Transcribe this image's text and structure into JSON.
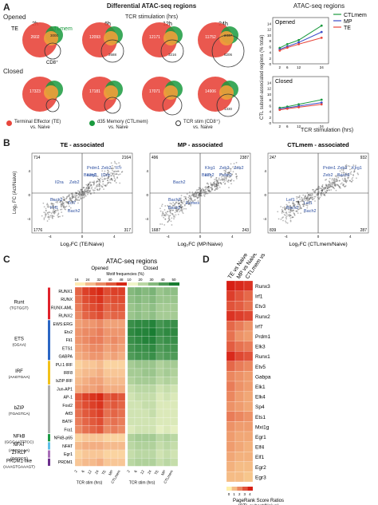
{
  "panelA": {
    "letter": "A",
    "title": "Differential ATAC-seq regions",
    "subtitle": "TCR stimulation (hrs)",
    "timepoints": [
      "2h",
      "6h",
      "12h",
      "24h"
    ],
    "opened_label": "Opened",
    "closed_label": "Closed",
    "te_label": "TE",
    "ctl_label": "CTLmem",
    "cd8_label": "CD8⁺",
    "opened_nums": [
      {
        "a": "2602",
        "b": "",
        "c": "",
        "d": "3000",
        "e": ""
      },
      {
        "a": "12093",
        "b": "",
        "c": "",
        "d": "",
        "e": "2688"
      },
      {
        "a": "12171",
        "b": "",
        "c": "",
        "d": "",
        "e": "3216"
      },
      {
        "a": "11752",
        "b": "2447",
        "c": "",
        "d": "",
        "e": "6206"
      }
    ],
    "closed_nums": [
      {
        "a": "17323",
        "b": "",
        "c": "",
        "d": "",
        "e": ""
      },
      {
        "a": "17181",
        "b": "",
        "c": "",
        "d": "",
        "e": ""
      },
      {
        "a": "17071",
        "b": "",
        "c": "",
        "d": "",
        "e": ""
      },
      {
        "a": "14906",
        "b": "",
        "c": "",
        "d": "",
        "e": "1330"
      }
    ],
    "legend": [
      {
        "color": "#e8463c",
        "line1": "Terminal Effector (TE)",
        "line2": "vs. Naive"
      },
      {
        "color": "#1a9a3e",
        "line1": "d35 Memory (CTLmem)",
        "line2": "vs. Naive"
      },
      {
        "color": "#ffffff",
        "line1": "TCR stim (CD8⁺)",
        "line2": "vs. Naive"
      }
    ],
    "line_title": "ATAC-seq regions",
    "line_ylabel": "CTL subset-associated regions (% total)",
    "line_xlabel": "TCR stimulation (hrs)",
    "colors": {
      "te": "#e8463c",
      "ctl": "#1a9a3e",
      "mp": "#3b4bc8"
    }
  },
  "chart_data": [
    {
      "type": "line",
      "title": "Opened",
      "x": [
        2,
        6,
        12,
        24
      ],
      "xticks": [
        "2",
        "6",
        "12",
        "24"
      ],
      "ylim": [
        0,
        16
      ],
      "yticks": [
        "0",
        "2",
        "4",
        "6",
        "8",
        "10",
        "12",
        "14"
      ],
      "series": [
        {
          "name": "CTLmem",
          "values": [
            5.5,
            6.8,
            8.2,
            13.2
          ]
        },
        {
          "name": "MP",
          "values": [
            5.0,
            6.0,
            7.4,
            11.0
          ]
        },
        {
          "name": "TE",
          "values": [
            4.6,
            5.6,
            6.8,
            9.0
          ]
        }
      ]
    },
    {
      "type": "line",
      "title": "Closed",
      "x": [
        2,
        6,
        12,
        24
      ],
      "xticks": [
        "2",
        "6",
        "12",
        "24"
      ],
      "ylim": [
        0,
        16
      ],
      "yticks": [
        "0",
        "2",
        "4",
        "6",
        "8",
        "10",
        "12",
        "14"
      ],
      "series": [
        {
          "name": "CTLmem",
          "values": [
            5.2,
            5.6,
            6.4,
            8.0
          ]
        },
        {
          "name": "MP",
          "values": [
            4.8,
            5.2,
            5.8,
            7.0
          ]
        },
        {
          "name": "TE",
          "values": [
            4.5,
            4.9,
            5.4,
            6.4
          ]
        }
      ]
    },
    {
      "type": "scatter",
      "title": "TE - associated",
      "xlabel": "Log2FC (TE/Naive)",
      "ylabel": "Log2 FC (Act/Naive)",
      "quadrant_counts": [
        "714",
        "2164",
        "1776",
        "317"
      ],
      "xticks": [
        "-4",
        "0",
        "4"
      ],
      "yticks": [
        "4",
        "0",
        "-4"
      ]
    },
    {
      "type": "scatter",
      "title": "MP - associated",
      "xlabel": "Log2FC (MP/Naive)",
      "ylabel": "",
      "quadrant_counts": [
        "496",
        "2387",
        "1687",
        "243"
      ],
      "xticks": [
        "-4",
        "0",
        "4"
      ],
      "yticks": [
        "4",
        "0",
        "-4"
      ]
    },
    {
      "type": "scatter",
      "title": "CTLmem - associated",
      "xlabel": "Log2FC (CTLmem/Naive)",
      "ylabel": "",
      "quadrant_counts": [
        "247",
        "932",
        "839",
        "287"
      ],
      "xticks": [
        "-4",
        "0",
        "4"
      ],
      "yticks": [
        "4",
        "0",
        "-4"
      ]
    },
    {
      "type": "heatmap",
      "title": "ATAC-seq regions",
      "opened_label": "Opened",
      "closed_label": "Closed",
      "scale_title": "Motif frequencies (%)",
      "opened_scale": [
        "16",
        "24",
        "32",
        "40",
        "48"
      ],
      "closed_scale": [
        "10",
        "20",
        "30",
        "40",
        "50"
      ],
      "columns": [
        "2",
        "6",
        "12",
        "24",
        "TE",
        "MP",
        "CTLmem"
      ],
      "col_group_label": "TCR stim (hrs)",
      "rows": [
        "RUNX1",
        "RUNX",
        "RUNX-AML",
        "RUNX2",
        "EWS:ERG",
        "Etv2",
        "Fli1",
        "ETS1",
        "GABPA",
        "PU.1:IRF",
        "IRF8",
        "bZIP:IRF",
        "Jun-AP1",
        "AP-1",
        "Fosl2",
        "Atf3",
        "BATF",
        "Fra1",
        "NFkB-p65",
        "NFAT",
        "Egr1",
        "PRDM1"
      ],
      "families": [
        {
          "name": "Runt",
          "motif": "(TGTGGT)",
          "color": "#e0222b"
        },
        {
          "name": "ETS",
          "motif": "(GGAA)",
          "color": "#2b66c4"
        },
        {
          "name": "IRF",
          "motif": "(AAGTGAA)",
          "color": "#f2c21a"
        },
        {
          "name": "bZIP",
          "motif": "(TGAGTCA)",
          "color": "#b0b0b0"
        },
        {
          "name": "NFkB",
          "motif": "(GGGAATTTCC)",
          "color": "#1c9a44"
        },
        {
          "name": "NFAT",
          "motif": "(ATGGAAA)",
          "color": "#5fc0e8"
        },
        {
          "name": "Zf-KLF",
          "motif": "(GGGCG)",
          "color": "#a86eb8"
        },
        {
          "name": "PRDM1-like",
          "motif": "(AAAGTGAAAGT)",
          "color": "#6b2e8c"
        }
      ],
      "opened_values": [
        [
          38,
          44,
          46,
          48,
          42,
          44,
          44
        ],
        [
          36,
          42,
          44,
          46,
          40,
          42,
          42
        ],
        [
          34,
          40,
          42,
          44,
          38,
          40,
          40
        ],
        [
          32,
          38,
          40,
          42,
          36,
          38,
          38
        ],
        [
          28,
          30,
          30,
          32,
          28,
          28,
          28
        ],
        [
          30,
          32,
          32,
          34,
          30,
          30,
          30
        ],
        [
          30,
          32,
          34,
          34,
          30,
          32,
          30
        ],
        [
          28,
          30,
          32,
          32,
          28,
          30,
          28
        ],
        [
          26,
          28,
          30,
          30,
          26,
          28,
          26
        ],
        [
          20,
          22,
          22,
          24,
          20,
          20,
          20
        ],
        [
          22,
          24,
          24,
          26,
          22,
          22,
          22
        ],
        [
          24,
          26,
          28,
          28,
          24,
          24,
          24
        ],
        [
          26,
          28,
          28,
          30,
          26,
          26,
          26
        ],
        [
          40,
          44,
          46,
          48,
          40,
          42,
          40
        ],
        [
          38,
          42,
          44,
          46,
          38,
          40,
          38
        ],
        [
          36,
          40,
          42,
          44,
          36,
          38,
          36
        ],
        [
          34,
          38,
          40,
          42,
          34,
          36,
          34
        ],
        [
          32,
          36,
          38,
          40,
          32,
          34,
          32
        ],
        [
          20,
          22,
          22,
          22,
          20,
          20,
          20
        ],
        [
          24,
          26,
          26,
          26,
          24,
          24,
          24
        ],
        [
          20,
          22,
          22,
          22,
          20,
          20,
          20
        ],
        [
          22,
          24,
          24,
          26,
          22,
          22,
          22
        ]
      ],
      "closed_values": [
        [
          30,
          32,
          30,
          32,
          26,
          28,
          28
        ],
        [
          28,
          30,
          28,
          30,
          26,
          26,
          26
        ],
        [
          26,
          28,
          26,
          28,
          24,
          24,
          24
        ],
        [
          26,
          28,
          26,
          28,
          24,
          24,
          24
        ],
        [
          44,
          46,
          46,
          48,
          42,
          44,
          44
        ],
        [
          46,
          48,
          48,
          50,
          44,
          46,
          46
        ],
        [
          44,
          46,
          48,
          48,
          42,
          44,
          44
        ],
        [
          42,
          44,
          44,
          46,
          40,
          42,
          42
        ],
        [
          40,
          42,
          42,
          44,
          38,
          40,
          40
        ],
        [
          24,
          26,
          26,
          26,
          22,
          24,
          24
        ],
        [
          24,
          24,
          26,
          26,
          22,
          24,
          22
        ],
        [
          22,
          24,
          24,
          24,
          20,
          22,
          20
        ],
        [
          18,
          20,
          20,
          20,
          16,
          18,
          16
        ],
        [
          16,
          18,
          18,
          18,
          14,
          16,
          14
        ],
        [
          16,
          16,
          18,
          18,
          14,
          14,
          14
        ],
        [
          16,
          16,
          16,
          18,
          14,
          14,
          14
        ],
        [
          16,
          16,
          16,
          16,
          14,
          14,
          14
        ],
        [
          14,
          16,
          16,
          16,
          12,
          14,
          12
        ],
        [
          22,
          24,
          24,
          24,
          20,
          22,
          20
        ],
        [
          20,
          22,
          22,
          22,
          18,
          20,
          18
        ],
        [
          18,
          20,
          20,
          20,
          16,
          18,
          16
        ],
        [
          20,
          22,
          22,
          22,
          18,
          20,
          18
        ]
      ]
    },
    {
      "type": "heatmap",
      "title": "",
      "columns": [
        "TE vs Naive",
        "MP vs Naive",
        "CTLmem vs Naive"
      ],
      "rows": [
        "Runx3",
        "Irf1",
        "Etv3",
        "Runx2",
        "Irf7",
        "Prdm1",
        "Elk3",
        "Runx1",
        "Etv5",
        "Gabpa",
        "Elk1",
        "Elk4",
        "Sp4",
        "Ets1",
        "Mxi1g",
        "Egr1",
        "Elf4",
        "Elf1",
        "Egr2",
        "Egr3"
      ],
      "scale_label": "PageRank Score Ratios (CTL subset/Naive)",
      "scale_ticks": [
        "0",
        "1",
        "2",
        "3",
        "4"
      ],
      "values": [
        [
          4.0,
          3.8,
          3.6
        ],
        [
          3.4,
          3.0,
          2.6
        ],
        [
          3.0,
          2.8,
          2.4
        ],
        [
          3.6,
          3.4,
          3.2
        ],
        [
          2.6,
          2.2,
          1.8
        ],
        [
          2.4,
          1.8,
          1.6
        ],
        [
          2.8,
          2.4,
          2.2
        ],
        [
          3.8,
          3.2,
          3.0
        ],
        [
          2.6,
          2.2,
          2.0
        ],
        [
          2.0,
          1.8,
          1.6
        ],
        [
          2.2,
          1.8,
          1.6
        ],
        [
          2.0,
          1.6,
          1.4
        ],
        [
          1.8,
          1.6,
          1.4
        ],
        [
          2.2,
          2.0,
          1.8
        ],
        [
          1.8,
          1.6,
          1.6
        ],
        [
          1.6,
          1.4,
          1.4
        ],
        [
          1.6,
          1.4,
          1.2
        ],
        [
          1.4,
          1.2,
          1.2
        ],
        [
          1.2,
          1.0,
          1.0
        ],
        [
          1.0,
          1.0,
          0.8
        ]
      ]
    }
  ],
  "panelB": {
    "letter": "B",
    "plots": [
      {
        "title": "TE - associated",
        "counts": [
          "714",
          "2164",
          "1776",
          "317"
        ],
        "xlabel": "Log₂FC (TE/Naive)",
        "ylabel": "Log₂ FC (Act/Naive)",
        "genes_up": [
          "Prdm1",
          "Zeb2",
          "Il7r",
          "Klrg1",
          "Il2rb",
          "Bach2",
          "Il2ra",
          "Zeb2"
        ],
        "genes_dn": [
          "Bach2",
          "Tcf7",
          "Prf1",
          "Bach2"
        ]
      },
      {
        "title": "MP - associated",
        "counts": [
          "496",
          "2387",
          "1687",
          "243"
        ],
        "xlabel": "Log₂FC (MP/Naive)",
        "ylabel": "",
        "genes_up": [
          "Klrg1",
          "Zeb2",
          "Zeb2",
          "Il7r",
          "Prdm1",
          "Bach2",
          "Bach2"
        ],
        "genes_dn": [
          "Bach2",
          "Eomes",
          "Bach2"
        ]
      },
      {
        "title": "CTLmem - associated",
        "counts": [
          "247",
          "932",
          "839",
          "287"
        ],
        "xlabel": "Log₂FC (CTLmem/Naive)",
        "ylabel": "",
        "genes_up": [
          "Prdm1",
          "Zeb2",
          "Klrg1",
          "Zeb2",
          "Bach2"
        ],
        "genes_dn": [
          "Lef1",
          "Lef1",
          "Bach2",
          "Bach2"
        ]
      }
    ],
    "xticks": [
      "-4",
      "0",
      "4"
    ],
    "yticks": [
      "4",
      "0",
      "-4"
    ]
  },
  "panelC": {
    "letter": "C"
  },
  "panelD": {
    "letter": "D"
  }
}
